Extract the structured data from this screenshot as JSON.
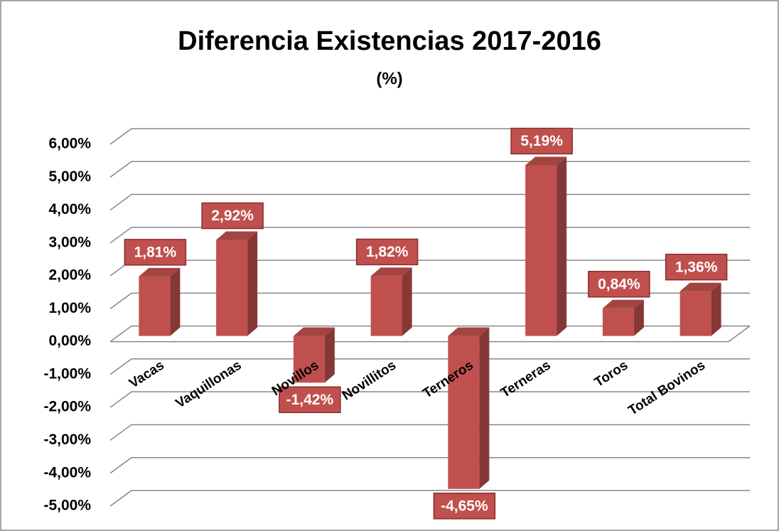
{
  "chart_data": {
    "type": "bar3d",
    "title": "Diferencia Existencias 2017-2016",
    "subtitle": "(%)",
    "categories": [
      "Vacas",
      "Vaquillonas",
      "Novillos",
      "Novillitos",
      "Terneros",
      "Terneras",
      "Toros",
      "Total Bovinos"
    ],
    "values": [
      1.81,
      2.92,
      -1.42,
      1.82,
      -4.65,
      5.19,
      0.84,
      1.36
    ],
    "value_labels": [
      "1,81%",
      "2,92%",
      "-1,42%",
      "1,82%",
      "-4,65%",
      "5,19%",
      "0,84%",
      "1,36%"
    ],
    "color": "#c0504d",
    "ylim": [
      -5,
      6
    ],
    "yticks": [
      {
        "value": -5,
        "label": "-5,00%"
      },
      {
        "value": -4,
        "label": "-4,00%"
      },
      {
        "value": -3,
        "label": "-3,00%"
      },
      {
        "value": -2,
        "label": "-2,00%"
      },
      {
        "value": -1,
        "label": "-1,00%"
      },
      {
        "value": 0,
        "label": "0,00%"
      },
      {
        "value": 1,
        "label": "1,00%"
      },
      {
        "value": 2,
        "label": "2,00%"
      },
      {
        "value": 3,
        "label": "3,00%"
      },
      {
        "value": 4,
        "label": "4,00%"
      },
      {
        "value": 5,
        "label": "5,00%"
      },
      {
        "value": 6,
        "label": "6,00%"
      }
    ],
    "grid": true
  }
}
